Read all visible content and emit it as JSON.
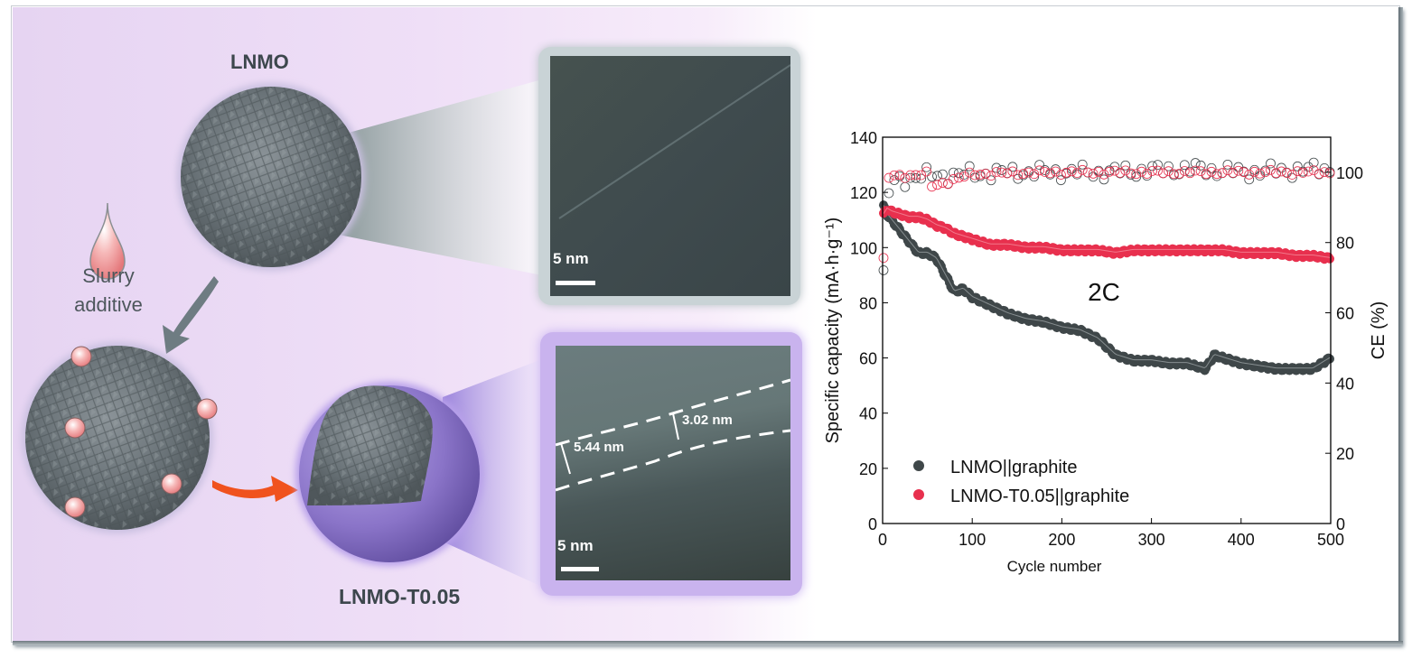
{
  "schematic": {
    "title_top": "LNMO",
    "title_bottom": "LNMO-T0.05",
    "additive_label_line1": "Slurry",
    "additive_label_line2": "additive",
    "colors": {
      "particle": "#6b7378",
      "additive_droplet": "#f4a6a6",
      "coating": "#8a74c8",
      "arrow_gray": "#6e7c82",
      "arrow_orange": "#f0521e",
      "background": "#ecdcf5"
    }
  },
  "tem_images": [
    {
      "id": "tem-lnmo",
      "scale_label": "5 nm",
      "frame_color": "#c9d3d6"
    },
    {
      "id": "tem-lnmo-t005",
      "scale_label": "5 nm",
      "frame_color": "#c9b3ee",
      "annotations": [
        "5.44 nm",
        "3.02 nm"
      ]
    }
  ],
  "chart_data": {
    "type": "scatter",
    "title": "",
    "annotation": "2C",
    "xlabel": "Cycle number",
    "ylabel": "Specific capacity (mA·h·g⁻¹)",
    "y2label": "CE (%)",
    "xlim": [
      0,
      500
    ],
    "ylim": [
      0,
      140
    ],
    "y2lim": [
      0,
      110
    ],
    "xticks": [
      0,
      100,
      200,
      300,
      400,
      500
    ],
    "yticks": [
      0,
      20,
      40,
      60,
      80,
      100,
      120,
      140
    ],
    "y2ticks": [
      0,
      20,
      40,
      60,
      80,
      100
    ],
    "grid": false,
    "legend_position": "lower-left",
    "series": [
      {
        "name": "LNMO||graphite",
        "axis": "left",
        "marker": "filled-circle",
        "color": "#3f4749",
        "x": [
          1,
          5,
          10,
          20,
          30,
          40,
          50,
          60,
          70,
          80,
          90,
          100,
          120,
          140,
          160,
          180,
          200,
          220,
          240,
          260,
          280,
          300,
          320,
          340,
          360,
          370,
          380,
          400,
          420,
          440,
          460,
          480,
          500
        ],
        "values": [
          115,
          112,
          110,
          106,
          102,
          98,
          98,
          96,
          90,
          84,
          85,
          82,
          79,
          76,
          74,
          73,
          71,
          70,
          67,
          61,
          59,
          59,
          58,
          58,
          56,
          61,
          60,
          58,
          57,
          56,
          56,
          56,
          60
        ]
      },
      {
        "name": "LNMO-T0.05||graphite",
        "axis": "left",
        "marker": "filled-circle",
        "color": "#e8304e",
        "x": [
          1,
          5,
          10,
          20,
          30,
          40,
          50,
          60,
          70,
          80,
          90,
          100,
          120,
          140,
          160,
          180,
          200,
          220,
          240,
          260,
          280,
          300,
          320,
          340,
          360,
          380,
          400,
          420,
          440,
          460,
          480,
          500
        ],
        "values": [
          112,
          114,
          113,
          112,
          111,
          111,
          110,
          108,
          107,
          105,
          104,
          103,
          101,
          101,
          100,
          100,
          99,
          99,
          99,
          98,
          99,
          99,
          99,
          99,
          99,
          99,
          98,
          98,
          98,
          97,
          97,
          96
        ]
      },
      {
        "name": "LNMO||graphite CE",
        "axis": "right",
        "marker": "open-circle",
        "color": "#3f4749",
        "x": [
          1,
          3,
          5,
          10,
          20,
          50,
          100,
          150,
          200,
          250,
          300,
          350,
          400,
          450,
          500
        ],
        "values": [
          70,
          80,
          92,
          97,
          98,
          99,
          99.5,
          100,
          100,
          100,
          100.5,
          101,
          100,
          100.5,
          101
        ]
      },
      {
        "name": "LNMO-T0.05||graphite CE",
        "axis": "right",
        "marker": "open-circle",
        "color": "#e8304e",
        "x": [
          1,
          3,
          5,
          10,
          20,
          50,
          55,
          100,
          150,
          200,
          250,
          300,
          350,
          400,
          450,
          500
        ],
        "values": [
          75,
          94,
          98,
          99,
          99,
          99.5,
          96,
          99.5,
          99.8,
          100,
          100,
          100,
          100,
          100,
          100,
          100
        ]
      }
    ]
  }
}
